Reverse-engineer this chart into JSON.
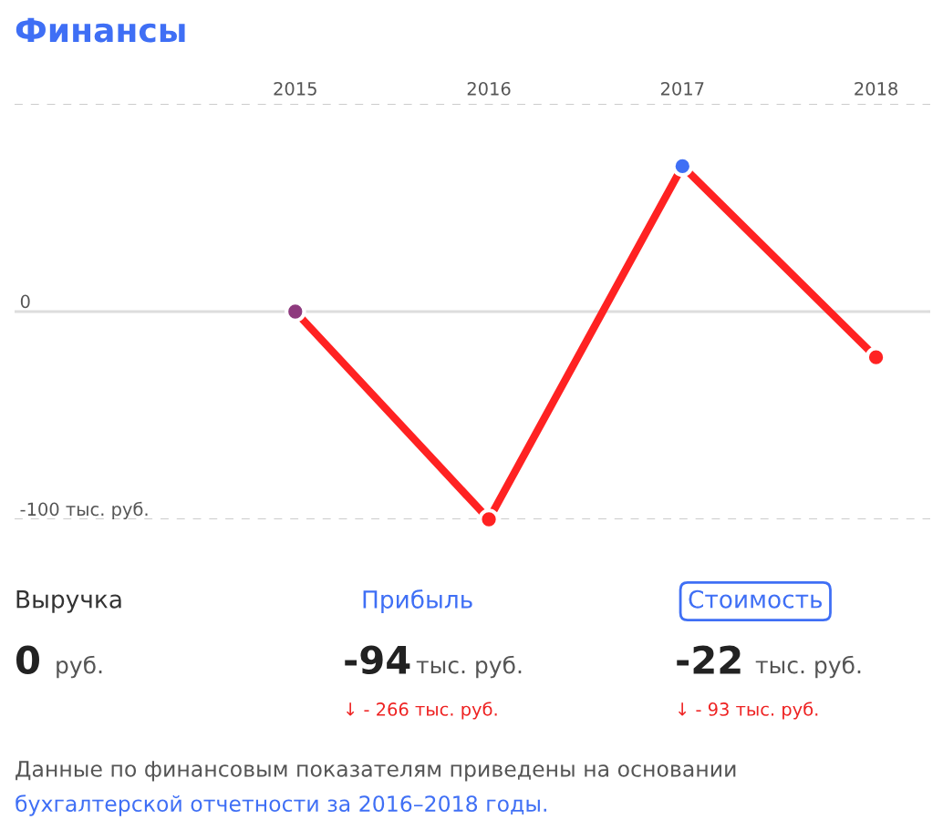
{
  "chart_data": {
    "type": "line",
    "title": "Финансы",
    "categories": [
      "2015",
      "2016",
      "2017",
      "2018"
    ],
    "series": [
      {
        "values": [
          0,
          -100,
          70,
          -22
        ],
        "color": "#ff2222",
        "colors": [
          "#8e3a7e",
          "#ff2222",
          "#3f6ff5",
          "#ff2222"
        ]
      }
    ],
    "ylim": [
      -100,
      100
    ],
    "yticks": [
      {
        "value": 100,
        "label": null
      },
      0,
      {
        "value": -100,
        "label": "-100 тыс. руб."
      }
    ],
    "grid": "y",
    "marker": "circle",
    "line_style": "solid",
    "legend": false,
    "ref_lines": [
      {
        "axis": "y",
        "value": 0,
        "line_style": "solid",
        "color": "#dddddd"
      }
    ],
    "annotations": [
      "Выручка",
      "0",
      "руб.",
      "Прибыль",
      "-94",
      "тыс. руб.",
      "↓ - 266 тыс. руб.",
      "Стоимость",
      "-22",
      "тыс. руб.",
      "↓ - 93 тыс. руб.",
      "Данные по финансовым показателям приведены на основании",
      "бухгалтерской отчетности за 2016–2018 годы."
    ]
  }
}
